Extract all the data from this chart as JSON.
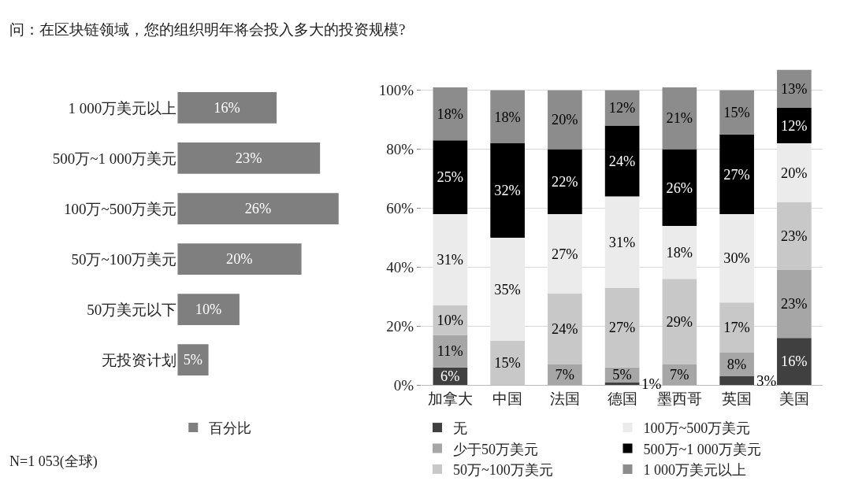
{
  "chart_data": [
    {
      "type": "bar",
      "orientation": "horizontal",
      "title": "问：在区块链领域，您的组织明年将会投入多大的投资规模?",
      "categories": [
        "1 000万美元以上",
        "500万~1 000万美元",
        "100万~500万美元",
        "50万~100万美元",
        "50万美元以下",
        "无投资计划"
      ],
      "series": [
        {
          "name": "百分比",
          "color": "#7f7f7f",
          "values": [
            16,
            23,
            26,
            20,
            10,
            5
          ],
          "value_labels": [
            "16%",
            "23%",
            "26%",
            "20%",
            "10%",
            "5%"
          ]
        }
      ],
      "legend": "bottom",
      "annotations": [
        "N=1 053(全球)"
      ]
    },
    {
      "type": "bar",
      "stacked": true,
      "categories": [
        "加拿大",
        "中国",
        "法国",
        "德国",
        "墨西哥",
        "英国",
        "美国"
      ],
      "series": [
        {
          "name": "无",
          "color": "#404040",
          "values": [
            6,
            null,
            null,
            1,
            null,
            3,
            16
          ],
          "value_labels": [
            "6%",
            null,
            null,
            "1%",
            null,
            "3%",
            "16%"
          ]
        },
        {
          "name": "少于50万美元",
          "color": "#a6a6a6",
          "values": [
            11,
            null,
            7,
            5,
            7,
            8,
            23
          ],
          "value_labels": [
            "11%",
            null,
            "7%",
            "5%",
            "7%",
            "8%",
            "23%"
          ]
        },
        {
          "name": "50万~100万美元",
          "color": "#c8c8c8",
          "values": [
            10,
            15,
            24,
            27,
            29,
            17,
            23
          ],
          "value_labels": [
            "10%",
            "15%",
            "24%",
            "27%",
            "29%",
            "17%",
            "23%"
          ]
        },
        {
          "name": "100万~500万美元",
          "color": "#ebebeb",
          "values": [
            31,
            35,
            27,
            31,
            18,
            30,
            20
          ],
          "value_labels": [
            "31%",
            "35%",
            "27%",
            "31%",
            "18%",
            "30%",
            "20%"
          ]
        },
        {
          "name": "500万~1 000万美元",
          "color": "#000000",
          "values": [
            25,
            32,
            22,
            24,
            26,
            27,
            12
          ],
          "value_labels": [
            "25%",
            "32%",
            "22%",
            "24%",
            "26%",
            "27%",
            "12%"
          ]
        },
        {
          "name": "1 000万美元以上",
          "color": "#8c8c8c",
          "values": [
            18,
            18,
            20,
            12,
            21,
            15,
            13
          ],
          "value_labels": [
            "18%",
            "18%",
            "20%",
            "12%",
            "21%",
            "15%",
            "13%"
          ]
        }
      ],
      "ylim": [
        0,
        107
      ],
      "yticks": [
        {
          "value": 0,
          "label": "0%"
        },
        {
          "value": 20,
          "label": "20%"
        },
        {
          "value": 40,
          "label": "40%"
        },
        {
          "value": 60,
          "label": "60%"
        },
        {
          "value": 80,
          "label": "80%"
        },
        {
          "value": 100,
          "label": "100%"
        }
      ],
      "grid": "y",
      "legend": "bottom"
    }
  ]
}
